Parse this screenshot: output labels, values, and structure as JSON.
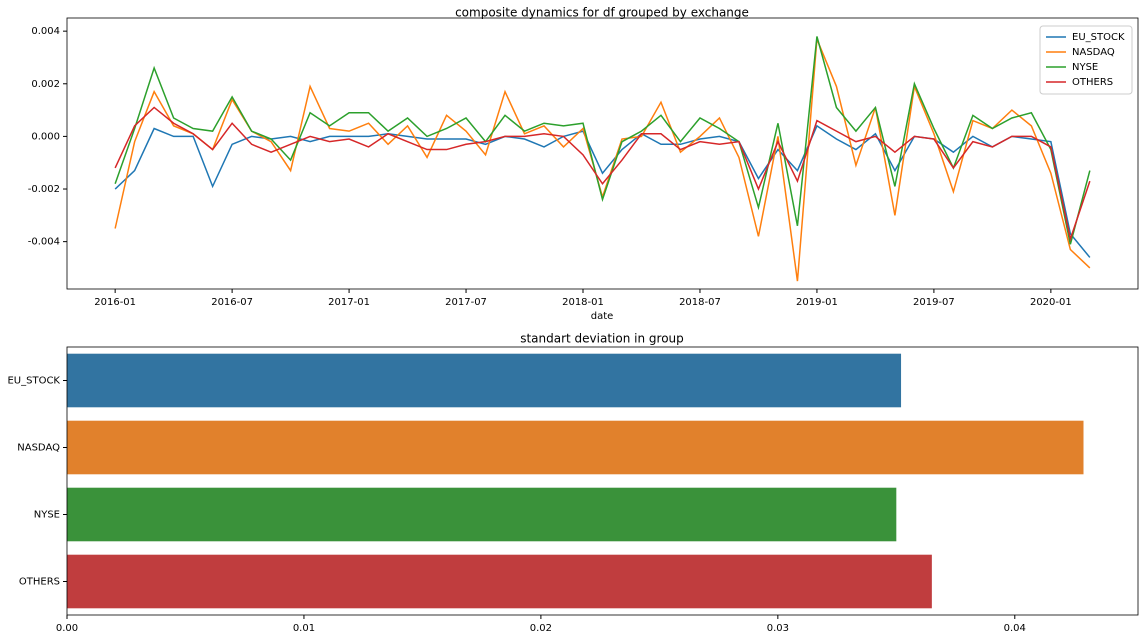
{
  "chart_data": [
    {
      "type": "line",
      "title": "composite dynamics for df grouped by exchange",
      "xlabel": "date",
      "x": [
        "2016-01",
        "2016-02",
        "2016-03",
        "2016-04",
        "2016-05",
        "2016-06",
        "2016-07",
        "2016-08",
        "2016-09",
        "2016-10",
        "2016-11",
        "2016-12",
        "2017-01",
        "2017-02",
        "2017-03",
        "2017-04",
        "2017-05",
        "2017-06",
        "2017-07",
        "2017-08",
        "2017-09",
        "2017-10",
        "2017-11",
        "2017-12",
        "2018-01",
        "2018-02",
        "2018-03",
        "2018-04",
        "2018-05",
        "2018-06",
        "2018-07",
        "2018-08",
        "2018-09",
        "2018-10",
        "2018-11",
        "2018-12",
        "2019-01",
        "2019-02",
        "2019-03",
        "2019-04",
        "2019-05",
        "2019-06",
        "2019-07",
        "2019-08",
        "2019-09",
        "2019-10",
        "2019-11",
        "2019-12",
        "2020-01",
        "2020-02",
        "2020-03"
      ],
      "xticks": [
        "2016-01",
        "2016-07",
        "2017-01",
        "2017-07",
        "2018-01",
        "2018-07",
        "2019-01",
        "2019-07",
        "2020-01"
      ],
      "ylim": [
        -0.0058,
        0.0045
      ],
      "yticks": [
        -0.004,
        -0.002,
        {
          "value": 0,
          "label": "0.000"
        },
        0.002,
        0.004
      ],
      "legend": "upper right",
      "series": [
        {
          "name": "EU_STOCK",
          "color": "#1f77b4",
          "values": [
            -0.002,
            -0.0013,
            0.0003,
            0.0,
            0.0,
            -0.0019,
            -0.0003,
            0.0,
            -0.0001,
            0.0,
            -0.0002,
            0.0,
            0.0,
            0.0,
            0.0001,
            0.0,
            -0.0001,
            -0.0001,
            -0.0001,
            -0.0003,
            0.0,
            -0.0001,
            -0.0004,
            0.0,
            0.0002,
            -0.0014,
            -0.0005,
            0.0001,
            -0.0003,
            -0.0003,
            -0.0001,
            0.0,
            -0.0002,
            -0.0016,
            -0.0005,
            -0.0013,
            0.0004,
            -0.0001,
            -0.0005,
            0.0001,
            -0.0013,
            0.0,
            -0.0001,
            -0.0006,
            0.0,
            -0.0004,
            0.0,
            -0.0001,
            -0.0002,
            -0.0037,
            -0.0046
          ]
        },
        {
          "name": "NASDAQ",
          "color": "#ff7f0e",
          "values": [
            -0.0035,
            -0.0002,
            0.0017,
            0.0004,
            0.0001,
            -0.0005,
            0.0014,
            0.0002,
            -0.0002,
            -0.0013,
            0.0019,
            0.0003,
            0.0002,
            0.0005,
            -0.0003,
            0.0004,
            -0.0008,
            0.0008,
            0.0002,
            -0.0007,
            0.0017,
            0.0001,
            0.0004,
            -0.0004,
            0.0003,
            -0.0023,
            -0.0001,
            0.0,
            0.0013,
            -0.0006,
            0.0,
            0.0007,
            -0.0008,
            -0.0038,
            0.0,
            -0.0055,
            0.0037,
            0.0019,
            -0.0011,
            0.0011,
            -0.003,
            0.0019,
            0.0001,
            -0.0021,
            0.0006,
            0.0003,
            0.001,
            0.0004,
            -0.0014,
            -0.0043,
            -0.005
          ]
        },
        {
          "name": "NYSE",
          "color": "#2ca02c",
          "values": [
            -0.0018,
            0.0003,
            0.0026,
            0.0007,
            0.0003,
            0.0002,
            0.0015,
            0.0002,
            -0.0001,
            -0.0009,
            0.0009,
            0.0004,
            0.0009,
            0.0009,
            0.0002,
            0.0007,
            0.0,
            0.0003,
            0.0007,
            -0.0002,
            0.0008,
            0.0002,
            0.0005,
            0.0004,
            0.0005,
            -0.0024,
            -0.0002,
            0.0002,
            0.0008,
            -0.0002,
            0.0007,
            0.0003,
            -0.0002,
            -0.0027,
            0.0005,
            -0.0034,
            0.0038,
            0.0011,
            0.0002,
            0.0011,
            -0.0019,
            0.002,
            0.0003,
            -0.0012,
            0.0008,
            0.0003,
            0.0007,
            0.0009,
            -0.0005,
            -0.0041,
            -0.0013
          ]
        },
        {
          "name": "OTHERS",
          "color": "#d62728",
          "values": [
            -0.0012,
            0.0004,
            0.0011,
            0.0005,
            0.0001,
            -0.0005,
            0.0005,
            -0.0003,
            -0.0006,
            -0.0003,
            0.0,
            -0.0002,
            -0.0001,
            -0.0004,
            0.0001,
            -0.0002,
            -0.0005,
            -0.0005,
            -0.0003,
            -0.0002,
            0.0,
            0.0,
            0.0001,
            0.0,
            -0.0007,
            -0.0018,
            -0.0009,
            0.0001,
            0.0001,
            -0.0005,
            -0.0002,
            -0.0003,
            -0.0002,
            -0.002,
            -0.0002,
            -0.0017,
            0.0006,
            0.0002,
            -0.0002,
            0.0,
            -0.0006,
            0.0,
            -0.0001,
            -0.0012,
            -0.0002,
            -0.0004,
            0.0,
            0.0,
            -0.0004,
            -0.0039,
            -0.0017
          ]
        }
      ]
    },
    {
      "type": "hbar",
      "title": "standart deviation in group",
      "categories": [
        "EU_STOCK",
        "NASDAQ",
        "NYSE",
        "OTHERS"
      ],
      "values": [
        0.0352,
        0.0429,
        0.035,
        0.0365
      ],
      "colors": [
        "#3274a1",
        "#e1812c",
        "#3a923a",
        "#c03d3e"
      ],
      "xlim": [
        0,
        0.0452
      ],
      "xticks": [
        {
          "value": 0,
          "label": "0.00"
        },
        0.01,
        0.02,
        0.03,
        0.04
      ]
    }
  ]
}
